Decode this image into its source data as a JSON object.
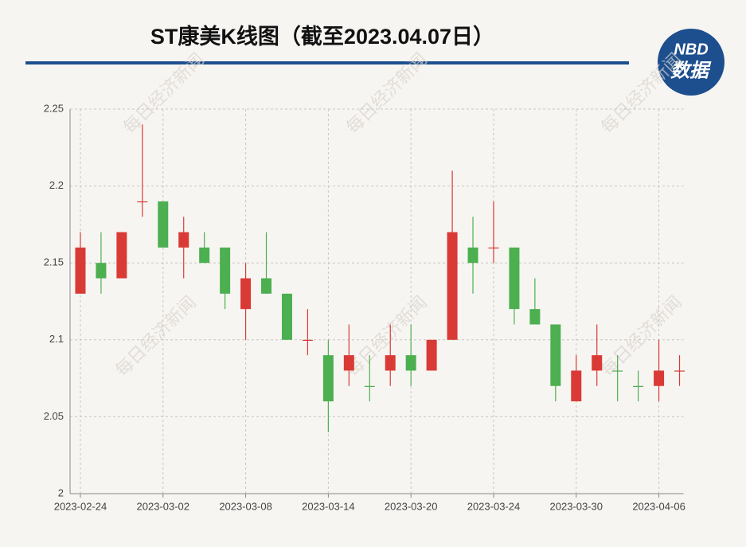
{
  "header": {
    "title": "ST康美K线图（截至2023.04.07日）",
    "logo_top": "NBD",
    "logo_bottom": "数据"
  },
  "watermark": "每日经济新闻",
  "chart_data": {
    "type": "candlestick",
    "categories": [
      "2023-02-24",
      null,
      null,
      null,
      "2023-03-02",
      null,
      null,
      null,
      "2023-03-08",
      null,
      null,
      null,
      "2023-03-14",
      null,
      null,
      null,
      "2023-03-20",
      null,
      null,
      null,
      "2023-03-24",
      null,
      null,
      null,
      "2023-03-30",
      null,
      null,
      null,
      "2023-04-06",
      null
    ],
    "open": [
      2.13,
      2.15,
      2.14,
      2.19,
      2.19,
      2.16,
      2.16,
      2.16,
      2.12,
      2.14,
      2.13,
      2.1,
      2.09,
      2.08,
      2.07,
      2.08,
      2.09,
      2.08,
      2.1,
      2.16,
      2.16,
      2.16,
      2.12,
      2.11,
      2.06,
      2.08,
      2.08,
      2.07,
      2.07,
      2.08
    ],
    "high": [
      2.17,
      2.17,
      2.17,
      2.24,
      2.19,
      2.18,
      2.17,
      2.16,
      2.15,
      2.17,
      2.13,
      2.12,
      2.1,
      2.11,
      2.09,
      2.11,
      2.11,
      2.1,
      2.21,
      2.18,
      2.19,
      2.16,
      2.14,
      2.11,
      2.09,
      2.11,
      2.09,
      2.08,
      2.1,
      2.09
    ],
    "low": [
      2.13,
      2.13,
      2.14,
      2.18,
      2.16,
      2.14,
      2.15,
      2.12,
      2.1,
      2.13,
      2.1,
      2.09,
      2.04,
      2.07,
      2.06,
      2.07,
      2.07,
      2.08,
      2.1,
      2.13,
      2.15,
      2.11,
      2.11,
      2.06,
      2.06,
      2.07,
      2.06,
      2.06,
      2.06,
      2.07
    ],
    "close": [
      2.16,
      2.14,
      2.17,
      2.19,
      2.16,
      2.17,
      2.15,
      2.13,
      2.14,
      2.13,
      2.1,
      2.1,
      2.06,
      2.09,
      2.07,
      2.09,
      2.08,
      2.1,
      2.17,
      2.15,
      2.16,
      2.12,
      2.11,
      2.07,
      2.08,
      2.09,
      2.08,
      2.07,
      2.08,
      2.08
    ],
    "up_color": "#d93a35",
    "down_color": "#4caf50",
    "ylim": [
      2,
      2.25
    ],
    "yticks": [
      2,
      2.05,
      2.1,
      2.15,
      2.2,
      2.25
    ],
    "grid": true
  }
}
